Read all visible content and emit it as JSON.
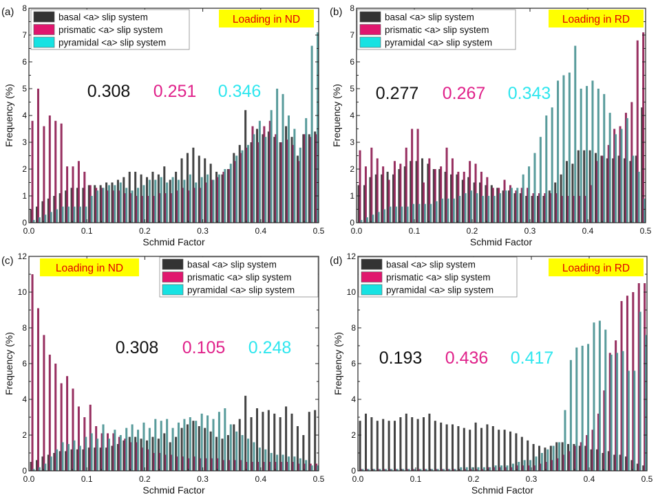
{
  "figure": {
    "legend_labels": [
      "basal <a> slip system",
      "prismatic <a> slip system",
      "pyramidal <a> slip system"
    ],
    "colors": {
      "basal": "#333333",
      "prismatic": "#8e1d52",
      "pyramidal": "#4a9292",
      "prismatic_swatch": "#e0166e",
      "pyramidal_swatch": "#17e2e2",
      "annotation_black": "#111111",
      "annotation_magenta": "#e0218a",
      "annotation_cyan": "#2ee6ee",
      "badge_bg": "#ffff00",
      "badge_text": "#e00000"
    }
  },
  "chart_data": [
    {
      "type": "bar",
      "panel_label": "(a)",
      "badge": "Loading in ND",
      "xlabel": "Schmid  Factor",
      "ylabel": "Frequency  (%)",
      "xlim": [
        0,
        0.5
      ],
      "ylim": [
        0,
        8
      ],
      "xticks": [
        "0.0",
        "0.1",
        "0.2",
        "0.3",
        "0.4",
        "0.5"
      ],
      "yticks": [
        "0",
        "1",
        "2",
        "3",
        "4",
        "5",
        "6",
        "7",
        "8"
      ],
      "legend_position": "top-left",
      "annotations": {
        "basal": "0.308",
        "prismatic": "0.251",
        "pyramidal": "0.346"
      },
      "bin_width": 0.01,
      "x": [
        0.0,
        0.01,
        0.02,
        0.03,
        0.04,
        0.05,
        0.06,
        0.07,
        0.08,
        0.09,
        0.1,
        0.11,
        0.12,
        0.13,
        0.14,
        0.15,
        0.16,
        0.17,
        0.18,
        0.19,
        0.2,
        0.21,
        0.22,
        0.23,
        0.24,
        0.25,
        0.26,
        0.27,
        0.28,
        0.29,
        0.3,
        0.31,
        0.32,
        0.33,
        0.34,
        0.35,
        0.36,
        0.37,
        0.38,
        0.39,
        0.4,
        0.41,
        0.42,
        0.43,
        0.44,
        0.45,
        0.46,
        0.47,
        0.48,
        0.49
      ],
      "series": [
        {
          "name": "basal <a> slip system",
          "values": [
            0.5,
            0.6,
            0.8,
            0.9,
            1.0,
            1.1,
            1.2,
            1.3,
            1.3,
            1.3,
            1.4,
            1.4,
            1.4,
            1.5,
            1.5,
            1.6,
            1.7,
            1.9,
            1.9,
            1.8,
            1.7,
            1.9,
            1.8,
            2.1,
            1.6,
            1.9,
            2.4,
            2.6,
            2.8,
            2.5,
            2.4,
            2.2,
            1.9,
            1.8,
            2.0,
            2.6,
            2.9,
            4.2,
            3.0,
            3.5,
            3.3,
            3.4,
            3.2,
            3.0,
            3.6,
            3.2,
            2.5,
            3.3,
            3.3,
            3.4
          ]
        },
        {
          "name": "prismatic <a> slip system",
          "values": [
            3.8,
            5.0,
            3.6,
            4.0,
            3.8,
            3.7,
            2.1,
            2.1,
            2.3,
            1.9,
            1.4,
            1.3,
            1.3,
            1.2,
            1.2,
            1.2,
            1.1,
            1.1,
            1.0,
            1.0,
            1.0,
            1.0,
            1.1,
            1.1,
            1.1,
            1.2,
            1.3,
            1.2,
            1.3,
            1.3,
            1.5,
            1.6,
            1.7,
            1.9,
            2.0,
            2.3,
            2.6,
            2.8,
            3.6,
            3.0,
            3.6,
            3.8,
            3.3,
            3.0,
            3.1,
            2.9,
            2.3,
            3.3,
            3.2,
            3.3
          ]
        },
        {
          "name": "pyramidal <a> slip system",
          "values": [
            0.1,
            0.2,
            0.3,
            0.4,
            0.5,
            0.6,
            0.6,
            0.6,
            0.6,
            0.6,
            1.0,
            1.2,
            1.3,
            1.4,
            1.4,
            1.5,
            1.3,
            1.2,
            1.3,
            1.4,
            1.6,
            1.6,
            1.7,
            1.5,
            1.7,
            1.6,
            1.6,
            1.8,
            1.5,
            1.7,
            1.8,
            1.6,
            1.8,
            2.0,
            2.2,
            2.5,
            2.7,
            2.9,
            3.3,
            3.8,
            3.2,
            4.2,
            5.0,
            4.8,
            4.0,
            3.5,
            2.8,
            3.9,
            6.6,
            7.1
          ]
        }
      ]
    },
    {
      "type": "bar",
      "panel_label": "(b)",
      "badge": "Loading in RD",
      "xlabel": "Schmid  Factor",
      "ylabel": "Frequency  (%)",
      "xlim": [
        0,
        0.5
      ],
      "ylim": [
        0,
        8
      ],
      "xticks": [
        "0.0",
        "0.1",
        "0.2",
        "0.3",
        "0.4",
        "0.5"
      ],
      "yticks": [
        "0",
        "1",
        "2",
        "3",
        "4",
        "5",
        "6",
        "7",
        "8"
      ],
      "legend_position": "top-left",
      "annotations": {
        "basal": "0.277",
        "prismatic": "0.267",
        "pyramidal": "0.343"
      },
      "bin_width": 0.01,
      "x": [
        0.0,
        0.01,
        0.02,
        0.03,
        0.04,
        0.05,
        0.06,
        0.07,
        0.08,
        0.09,
        0.1,
        0.11,
        0.12,
        0.13,
        0.14,
        0.15,
        0.16,
        0.17,
        0.18,
        0.19,
        0.2,
        0.21,
        0.22,
        0.23,
        0.24,
        0.25,
        0.26,
        0.27,
        0.28,
        0.29,
        0.3,
        0.31,
        0.32,
        0.33,
        0.34,
        0.35,
        0.36,
        0.37,
        0.38,
        0.39,
        0.4,
        0.41,
        0.42,
        0.43,
        0.44,
        0.45,
        0.46,
        0.47,
        0.48,
        0.49
      ],
      "series": [
        {
          "name": "basal <a> slip system",
          "values": [
            1.4,
            1.4,
            1.7,
            1.8,
            1.8,
            1.9,
            1.8,
            2.0,
            2.1,
            2.3,
            2.3,
            2.4,
            2.2,
            2.0,
            2.0,
            1.9,
            1.8,
            1.8,
            1.6,
            1.7,
            1.5,
            1.5,
            1.4,
            1.4,
            1.3,
            1.2,
            1.2,
            1.1,
            1.1,
            1.0,
            1.0,
            1.0,
            1.0,
            1.2,
            1.5,
            1.8,
            2.3,
            2.2,
            2.7,
            2.7,
            2.7,
            2.6,
            2.5,
            2.4,
            2.4,
            2.5,
            2.4,
            2.3,
            2.5,
            4.3
          ]
        },
        {
          "name": "prismatic <a> slip system",
          "values": [
            2.7,
            2.1,
            2.8,
            2.4,
            2.1,
            1.6,
            2.3,
            2.2,
            2.8,
            3.5,
            3.5,
            1.5,
            2.4,
            2.0,
            2.1,
            2.8,
            2.4,
            1.9,
            1.9,
            2.3,
            2.2,
            1.9,
            1.7,
            1.3,
            1.3,
            1.6,
            1.4,
            1.2,
            1.3,
            1.3,
            1.1,
            1.1,
            1.1,
            1.1,
            1.1,
            1.0,
            1.0,
            1.0,
            1.0,
            1.0,
            1.4,
            2.3,
            2.5,
            2.9,
            3.5,
            3.6,
            4.1,
            4.5,
            6.8,
            7.1
          ]
        },
        {
          "name": "pyramidal <a> slip system",
          "values": [
            0.1,
            0.2,
            0.3,
            0.4,
            0.5,
            0.6,
            0.6,
            0.6,
            0.6,
            0.7,
            0.7,
            0.7,
            0.7,
            0.8,
            0.9,
            0.9,
            0.9,
            1.0,
            1.1,
            1.2,
            1.1,
            1.0,
            1.0,
            1.0,
            1.1,
            1.2,
            1.3,
            1.3,
            1.8,
            2.1,
            2.6,
            3.2,
            4.0,
            4.3,
            5.3,
            5.5,
            5.6,
            6.6,
            5.0,
            5.1,
            5.3,
            5.0,
            4.8,
            4.1,
            3.3,
            3.5,
            3.9,
            2.5,
            1.9,
            0.9
          ]
        }
      ]
    },
    {
      "type": "bar",
      "panel_label": "(c)",
      "badge": "Loading in ND",
      "xlabel": "Schmid  Factor",
      "ylabel": "Frequency  (%)",
      "xlim": [
        0,
        0.5
      ],
      "ylim": [
        0,
        12
      ],
      "xticks": [
        "0.0",
        "0.1",
        "0.2",
        "0.3",
        "0.4",
        "0.5"
      ],
      "yticks": [
        "0",
        "2",
        "4",
        "6",
        "8",
        "10",
        "12"
      ],
      "legend_position": "top-right",
      "annotations": {
        "basal": "0.308",
        "prismatic": "0.105",
        "pyramidal": "0.248"
      },
      "bin_width": 0.01,
      "x": [
        0.0,
        0.01,
        0.02,
        0.03,
        0.04,
        0.05,
        0.06,
        0.07,
        0.08,
        0.09,
        0.1,
        0.11,
        0.12,
        0.13,
        0.14,
        0.15,
        0.16,
        0.17,
        0.18,
        0.19,
        0.2,
        0.21,
        0.22,
        0.23,
        0.24,
        0.25,
        0.26,
        0.27,
        0.28,
        0.29,
        0.3,
        0.31,
        0.32,
        0.33,
        0.34,
        0.35,
        0.36,
        0.37,
        0.38,
        0.39,
        0.4,
        0.41,
        0.42,
        0.43,
        0.44,
        0.45,
        0.46,
        0.47,
        0.48,
        0.49
      ],
      "series": [
        {
          "name": "basal <a> slip system",
          "values": [
            0.5,
            0.6,
            0.8,
            0.9,
            1.0,
            1.1,
            1.1,
            1.2,
            1.2,
            1.2,
            1.3,
            1.3,
            1.3,
            1.3,
            1.4,
            1.5,
            1.7,
            1.9,
            1.9,
            1.8,
            1.7,
            1.9,
            1.8,
            2.1,
            1.6,
            1.9,
            2.4,
            2.6,
            2.8,
            2.5,
            2.4,
            2.2,
            1.9,
            1.8,
            2.0,
            2.6,
            2.9,
            4.2,
            3.0,
            3.5,
            3.3,
            3.4,
            3.2,
            3.0,
            3.6,
            3.2,
            2.5,
            2.0,
            3.3,
            3.4
          ]
        },
        {
          "name": "prismatic <a> slip system",
          "values": [
            11.0,
            9.1,
            7.6,
            6.5,
            6.0,
            4.9,
            5.3,
            4.6,
            3.6,
            3.0,
            3.7,
            2.5,
            2.1,
            2.1,
            2.1,
            1.9,
            1.8,
            1.6,
            1.6,
            1.3,
            1.2,
            1.0,
            1.0,
            0.9,
            0.9,
            0.8,
            0.8,
            0.7,
            0.8,
            0.7,
            0.7,
            0.7,
            0.7,
            0.6,
            0.6,
            0.6,
            0.6,
            0.5,
            0.5,
            0.5,
            0.5,
            0.5,
            0.5,
            0.5,
            0.5,
            0.5,
            0.4,
            0.4,
            0.4,
            0.4
          ]
        },
        {
          "name": "pyramidal <a> slip system",
          "values": [
            0.1,
            0.2,
            0.4,
            0.8,
            1.2,
            1.6,
            1.5,
            1.7,
            1.4,
            1.9,
            2.1,
            1.8,
            2.6,
            1.8,
            2.3,
            2.0,
            2.4,
            2.6,
            2.3,
            2.7,
            2.4,
            2.9,
            2.8,
            2.9,
            2.4,
            2.7,
            2.9,
            3.0,
            2.8,
            3.2,
            3.1,
            2.9,
            3.3,
            3.5,
            2.6,
            2.2,
            2.0,
            1.8,
            1.6,
            1.3,
            1.2,
            1.0,
            0.9,
            0.9,
            0.8,
            0.8,
            0.7,
            0.6,
            0.3,
            0.3
          ]
        }
      ]
    },
    {
      "type": "bar",
      "panel_label": "(d)",
      "badge": "Loading in RD",
      "xlabel": "Schmid  Factor",
      "ylabel": "Frequency  (%)",
      "xlim": [
        0,
        0.5
      ],
      "ylim": [
        0,
        12
      ],
      "xticks": [
        "0.0",
        "0.1",
        "0.2",
        "0.3",
        "0.4",
        "0.5"
      ],
      "yticks": [
        "0",
        "2",
        "4",
        "6",
        "8",
        "10",
        "12"
      ],
      "legend_position": "top-left",
      "annotations": {
        "basal": "0.193",
        "prismatic": "0.436",
        "pyramidal": "0.417"
      },
      "bin_width": 0.01,
      "x": [
        0.0,
        0.01,
        0.02,
        0.03,
        0.04,
        0.05,
        0.06,
        0.07,
        0.08,
        0.09,
        0.1,
        0.11,
        0.12,
        0.13,
        0.14,
        0.15,
        0.16,
        0.17,
        0.18,
        0.19,
        0.2,
        0.21,
        0.22,
        0.23,
        0.24,
        0.25,
        0.26,
        0.27,
        0.28,
        0.29,
        0.3,
        0.31,
        0.32,
        0.33,
        0.34,
        0.35,
        0.36,
        0.37,
        0.38,
        0.39,
        0.4,
        0.41,
        0.42,
        0.43,
        0.44,
        0.45,
        0.46,
        0.47,
        0.48,
        0.49
      ],
      "series": [
        {
          "name": "basal <a> slip system",
          "values": [
            2.8,
            3.2,
            3.0,
            2.8,
            2.9,
            2.8,
            2.8,
            3.0,
            3.2,
            3.0,
            2.9,
            3.0,
            3.2,
            2.8,
            2.7,
            2.6,
            2.6,
            2.5,
            2.4,
            2.3,
            2.7,
            2.4,
            2.6,
            2.5,
            2.3,
            2.3,
            2.2,
            2.1,
            1.9,
            1.7,
            1.5,
            1.4,
            1.3,
            1.4,
            1.6,
            1.6,
            1.5,
            1.5,
            1.4,
            1.4,
            1.2,
            1.2,
            1.0,
            1.1,
            0.9,
            0.9,
            0.8,
            0.6,
            0.4,
            0.3
          ]
        },
        {
          "name": "prismatic <a> slip system",
          "values": [
            0.1,
            0.1,
            0.1,
            0.1,
            0.1,
            0.1,
            0.1,
            0.1,
            0.1,
            0.1,
            0.1,
            0.1,
            0.1,
            0.1,
            0.1,
            0.1,
            0.1,
            0.1,
            0.1,
            0.1,
            0.1,
            0.1,
            0.2,
            0.2,
            0.2,
            0.2,
            0.2,
            0.3,
            0.3,
            0.3,
            0.3,
            0.4,
            0.5,
            0.6,
            0.7,
            0.9,
            1.1,
            1.4,
            1.6,
            2.0,
            2.3,
            3.2,
            4.5,
            6.6,
            7.3,
            9.5,
            9.8,
            10.0,
            10.5,
            10.5
          ]
        },
        {
          "name": "pyramidal <a> slip system",
          "values": [
            0.1,
            0.1,
            0.1,
            0.1,
            0.1,
            0.1,
            0.1,
            0.1,
            0.1,
            0.1,
            0.1,
            0.1,
            0.1,
            0.1,
            0.1,
            0.1,
            0.1,
            0.2,
            0.2,
            0.2,
            0.2,
            0.2,
            0.2,
            0.3,
            0.3,
            0.3,
            0.4,
            0.5,
            0.6,
            0.6,
            0.8,
            1.0,
            1.2,
            1.4,
            1.6,
            3.4,
            6.2,
            6.9,
            7.0,
            7.1,
            8.3,
            8.4,
            7.9,
            6.5,
            6.6,
            6.7,
            5.6,
            5.6,
            8.9,
            7.6
          ]
        }
      ]
    }
  ]
}
